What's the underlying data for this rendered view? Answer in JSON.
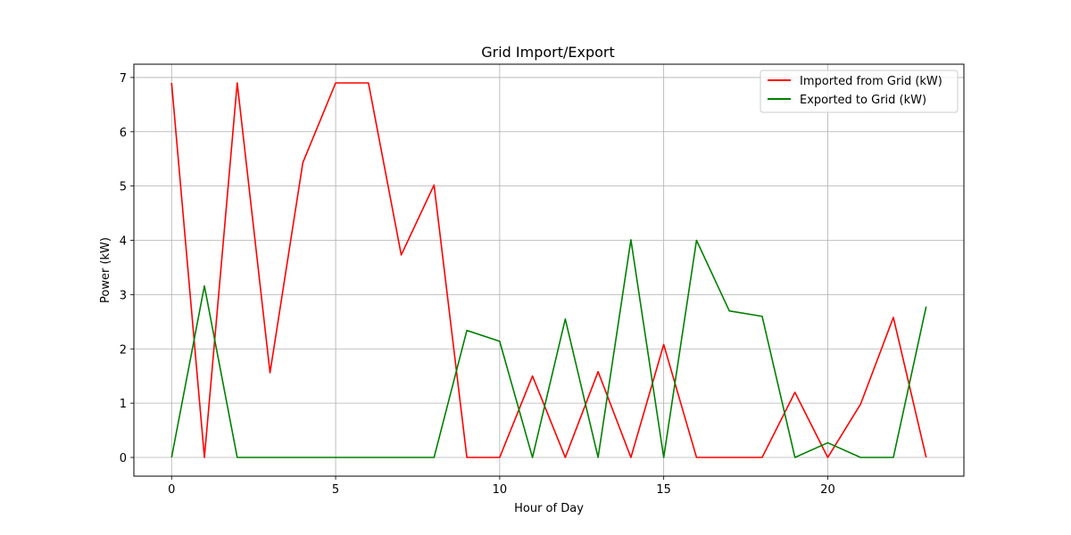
{
  "chart_data": {
    "type": "line",
    "title": "Grid Import/Export",
    "xlabel": "Hour of Day",
    "ylabel": "Power (kW)",
    "x": [
      0,
      1,
      2,
      3,
      4,
      5,
      6,
      7,
      8,
      9,
      10,
      11,
      12,
      13,
      14,
      15,
      16,
      17,
      18,
      19,
      20,
      21,
      22,
      23
    ],
    "xlim": [
      -1.15,
      24.15
    ],
    "ylim": [
      -0.345,
      7.245
    ],
    "xticks": [
      0,
      5,
      10,
      15,
      20
    ],
    "yticks": [
      0,
      1,
      2,
      3,
      4,
      5,
      6,
      7
    ],
    "grid": true,
    "legend_position": "top-right",
    "series": [
      {
        "name": "Imported from Grid (kW)",
        "color": "#ff0000",
        "values": [
          6.9,
          0,
          6.9,
          1.56,
          5.43,
          6.9,
          6.9,
          3.73,
          5.02,
          0,
          0,
          1.5,
          0,
          1.58,
          0,
          2.08,
          0,
          0,
          0,
          1.2,
          0,
          0.98,
          2.58,
          0
        ]
      },
      {
        "name": "Exported to Grid (kW)",
        "color": "#008000",
        "values": [
          0,
          3.16,
          0,
          0,
          0,
          0,
          0,
          0,
          0,
          2.34,
          2.14,
          0,
          2.55,
          0,
          4.01,
          0,
          4.0,
          2.7,
          2.6,
          0,
          0.27,
          0,
          0,
          2.78
        ]
      }
    ]
  }
}
